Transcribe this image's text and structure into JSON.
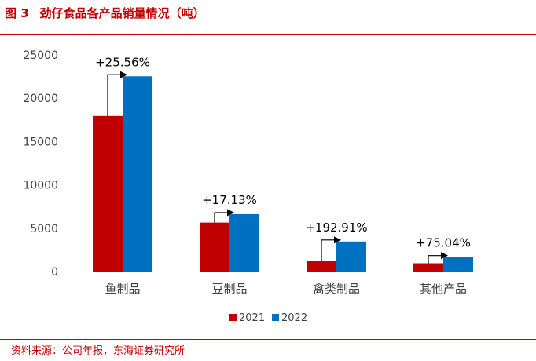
{
  "figure": {
    "number": "图 3",
    "title": "劲仔食品各产品销量情况（吨）"
  },
  "source": "资料来源：公司年报，东海证券研究所",
  "colors": {
    "accent": "#c00000",
    "series_2021": "#c00000",
    "series_2022": "#0070c0"
  },
  "chart_data": {
    "type": "bar",
    "categories": [
      "鱼制品",
      "豆制品",
      "禽类制品",
      "其他产品"
    ],
    "series": [
      {
        "name": "2021",
        "values": [
          17950,
          5650,
          1180,
          950
        ],
        "color": "#c00000"
      },
      {
        "name": "2022",
        "values": [
          22530,
          6620,
          3460,
          1660
        ],
        "color": "#0070c0"
      }
    ],
    "annotations": [
      "+25.56%",
      "+17.13%",
      "+192.91%",
      "+75.04%"
    ],
    "ylim": [
      0,
      25000
    ],
    "yticks": [
      "0",
      "5000",
      "10000",
      "15000",
      "20000",
      "25000"
    ],
    "ytick_values": [
      0,
      5000,
      10000,
      15000,
      20000,
      25000
    ],
    "legend_position": "bottom-center",
    "grid": false
  }
}
